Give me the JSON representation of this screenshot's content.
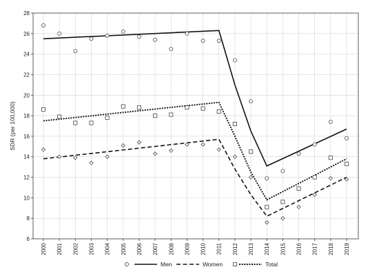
{
  "chart_data": {
    "type": "scatter",
    "title": "",
    "xlabel": "",
    "ylabel": "SDR (per 100,000)",
    "x": [
      2000,
      2001,
      2002,
      2003,
      2004,
      2005,
      2006,
      2007,
      2008,
      2009,
      2010,
      2011,
      2012,
      2013,
      2014,
      2015,
      2016,
      2017,
      2018,
      2019
    ],
    "xlim": [
      2000,
      2019
    ],
    "ylim": [
      6,
      28
    ],
    "yticks": [
      6,
      8,
      10,
      12,
      14,
      16,
      18,
      20,
      22,
      24,
      26,
      28
    ],
    "grid": true,
    "legend_position": "bottom",
    "series": [
      {
        "name": "Men",
        "marker": "circle",
        "line_style": "solid",
        "points": [
          26.8,
          26.0,
          24.3,
          25.5,
          25.8,
          26.2,
          25.7,
          25.4,
          24.5,
          26.0,
          25.3,
          25.3,
          23.4,
          19.4,
          11.9,
          12.6,
          14.3,
          15.2,
          17.4,
          15.8
        ],
        "trend": [
          [
            2000,
            25.5
          ],
          [
            2011,
            26.3
          ],
          [
            2012,
            21.0
          ],
          [
            2013,
            16.5
          ],
          [
            2014,
            13.1
          ],
          [
            2019,
            16.7
          ]
        ]
      },
      {
        "name": "Women",
        "marker": "diamond",
        "line_style": "dashed",
        "points": [
          14.7,
          14.0,
          13.9,
          13.4,
          14.0,
          15.1,
          15.4,
          14.3,
          14.6,
          15.2,
          15.2,
          14.7,
          14.0,
          12.0,
          7.6,
          8.0,
          9.1,
          10.3,
          11.9,
          11.8
        ],
        "trend": [
          [
            2000,
            13.8
          ],
          [
            2011,
            15.7
          ],
          [
            2012,
            12.8
          ],
          [
            2013,
            10.3
          ],
          [
            2014,
            8.2
          ],
          [
            2019,
            12.0
          ]
        ]
      },
      {
        "name": "Total",
        "marker": "square",
        "line_style": "dotted",
        "points": [
          18.6,
          17.9,
          17.3,
          17.3,
          17.8,
          18.9,
          18.8,
          18.0,
          18.1,
          18.8,
          18.7,
          18.4,
          17.2,
          14.5,
          9.1,
          9.6,
          10.9,
          12.0,
          13.9,
          13.3
        ],
        "trend": [
          [
            2000,
            17.5
          ],
          [
            2011,
            19.3
          ],
          [
            2012,
            16.0
          ],
          [
            2013,
            12.5
          ],
          [
            2014,
            9.8
          ],
          [
            2019,
            13.8
          ]
        ]
      }
    ]
  }
}
